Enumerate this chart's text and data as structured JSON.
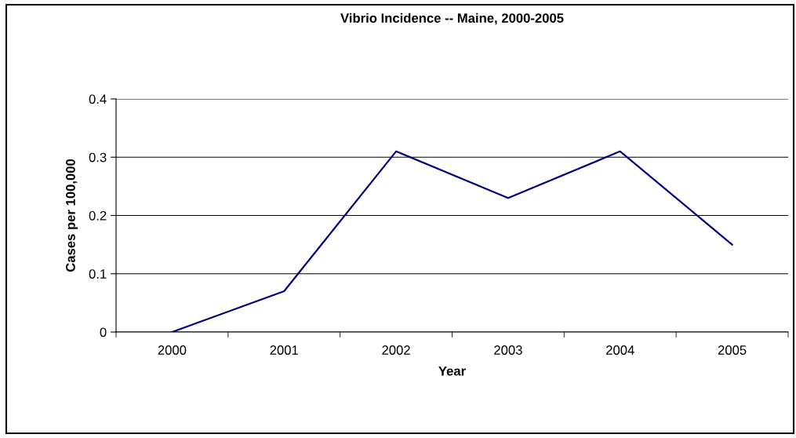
{
  "chart_data": {
    "type": "line",
    "title": "Vibrio Incidence -- Maine, 2000-2005",
    "xlabel": "Year",
    "ylabel": "Cases per 100,000",
    "categories": [
      "2000",
      "2001",
      "2002",
      "2003",
      "2004",
      "2005"
    ],
    "series": [
      {
        "color": "#000080",
        "values": [
          0,
          0.07,
          0.31,
          0.23,
          0.31,
          0.15
        ]
      }
    ],
    "ylim": [
      0,
      0.4
    ],
    "yticks": [
      0,
      0.1,
      0.2,
      0.3,
      0.4
    ],
    "grid": "y",
    "legend": false,
    "marker": "none",
    "line_style": "solid"
  }
}
